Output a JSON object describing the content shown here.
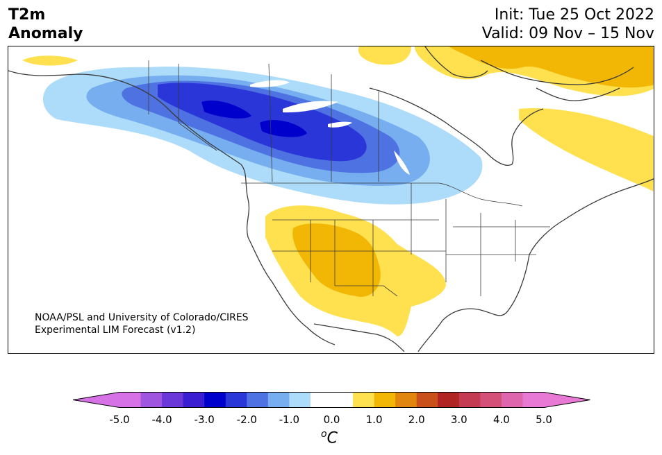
{
  "header": {
    "title_line1": "T2m",
    "title_line2": "Anomaly",
    "init": "Init: Tue 25 Oct 2022",
    "valid": "Valid: 09 Nov – 15 Nov"
  },
  "credit": {
    "line1": "NOAA/PSL and University of Colorado/CIRES",
    "line2": "Experimental LIM Forecast (v1.2)"
  },
  "colorbar": {
    "ticks": [
      "-5.0",
      "-4.0",
      "-3.0",
      "-2.0",
      "-1.0",
      "0.0",
      "1.0",
      "2.0",
      "3.0",
      "4.0",
      "5.0"
    ],
    "unit_base": "C",
    "unit_sup": "o",
    "colors": [
      "#d672e6",
      "#9f55e0",
      "#6a38d8",
      "#3a1fd2",
      "#0000cc",
      "#2b36d9",
      "#4f72e3",
      "#77aef0",
      "#addcfa",
      "#ffffff",
      "#ffffff",
      "#ffe14f",
      "#f2b705",
      "#e0860f",
      "#c9501a",
      "#b02424",
      "#c43a52",
      "#d45078",
      "#dd66ac",
      "#e87ad6"
    ],
    "under_color": "#d672e6",
    "over_color": "#e87ad6"
  },
  "map": {
    "variable": "2-meter temperature anomaly",
    "region": "North America",
    "features": [
      "cold anomaly over western Canada",
      "warm anomaly over southwestern United States",
      "warm anomaly over northeastern Canada and Greenland"
    ]
  }
}
